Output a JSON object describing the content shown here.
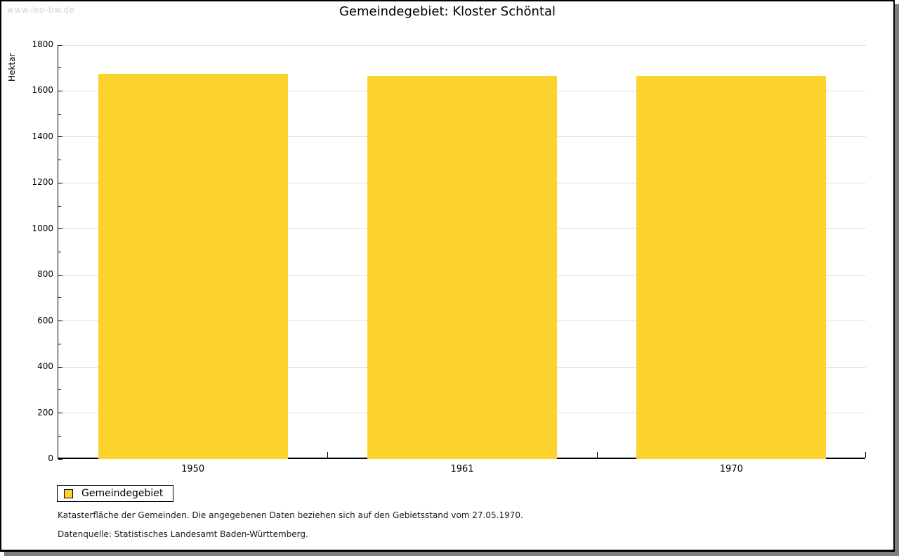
{
  "watermark": "www.leo-bw.de",
  "title": "Gemeindegebiet: Kloster Schöntal",
  "chart_data": {
    "type": "bar",
    "title": "Gemeindegebiet: Kloster Schöntal",
    "ylabel": "Hektar",
    "xlabel": "",
    "categories": [
      "1950",
      "1961",
      "1970"
    ],
    "series": [
      {
        "name": "Gemeindegebiet",
        "values": [
          1675,
          1666,
          1666
        ]
      }
    ],
    "ylim": [
      0,
      1800
    ],
    "ytick_major": 200,
    "ytick_minor": 100,
    "grid": true,
    "legend_position": "bottom-left",
    "bar_color": "#fcd32d"
  },
  "legend": {
    "items": [
      {
        "label": "Gemeindegebiet",
        "color": "#fcd32d"
      }
    ]
  },
  "footer": {
    "line1": "Katasterfläche der Gemeinden. Die angegebenen Daten beziehen sich auf den Gebietsstand vom 27.05.1970.",
    "line2": "Datenquelle: Statistisches Landesamt Baden-Württemberg."
  },
  "colors": {
    "bar": "#fcd32d",
    "grid": "#dcdcdc",
    "axis": "#000000",
    "watermark": "#d3d3d3",
    "frame_shadow": "#7f7f7f",
    "background": "#ffffff"
  }
}
